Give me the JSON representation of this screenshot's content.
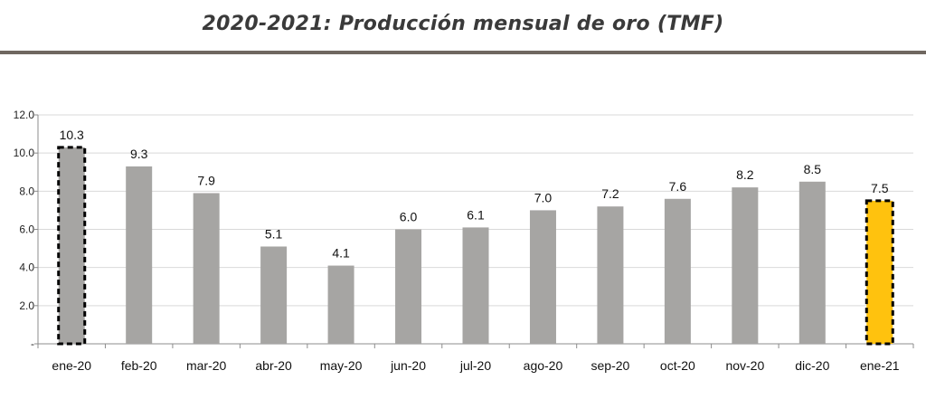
{
  "chart_data": {
    "type": "bar",
    "title": "2020-2021: Producción mensual de oro (TMF)",
    "categories": [
      "ene-20",
      "feb-20",
      "mar-20",
      "abr-20",
      "may-20",
      "jun-20",
      "jul-20",
      "ago-20",
      "sep-20",
      "oct-20",
      "nov-20",
      "dic-20",
      "ene-21"
    ],
    "values": [
      10.3,
      9.3,
      7.9,
      5.1,
      4.1,
      6.0,
      6.1,
      7.0,
      7.2,
      7.6,
      8.2,
      8.5,
      7.5
    ],
    "value_labels": [
      "10.3",
      "9.3",
      "7.9",
      "5.1",
      "4.1",
      "6.0",
      "6.1",
      "7.0",
      "7.2",
      "7.6",
      "8.2",
      "8.5",
      "7.5"
    ],
    "y_ticks": [
      0,
      2,
      4,
      6,
      8,
      10,
      12
    ],
    "y_tick_labels": [
      "-",
      "2.0",
      "4.0",
      "6.0",
      "8.0",
      "10.0",
      "12.0"
    ],
    "ylim": [
      0,
      12
    ],
    "grid": true,
    "legend": "none",
    "colors": {
      "bar": "#a6a5a3",
      "highlight_bar": "#ffc20e",
      "grid": "#d9d9d9",
      "axis": "#8c8c8c",
      "title_rule": "#6f6760"
    },
    "dashed_outline_categories": [
      "ene-20",
      "ene-21"
    ],
    "highlight_categories": [
      "ene-21"
    ]
  }
}
